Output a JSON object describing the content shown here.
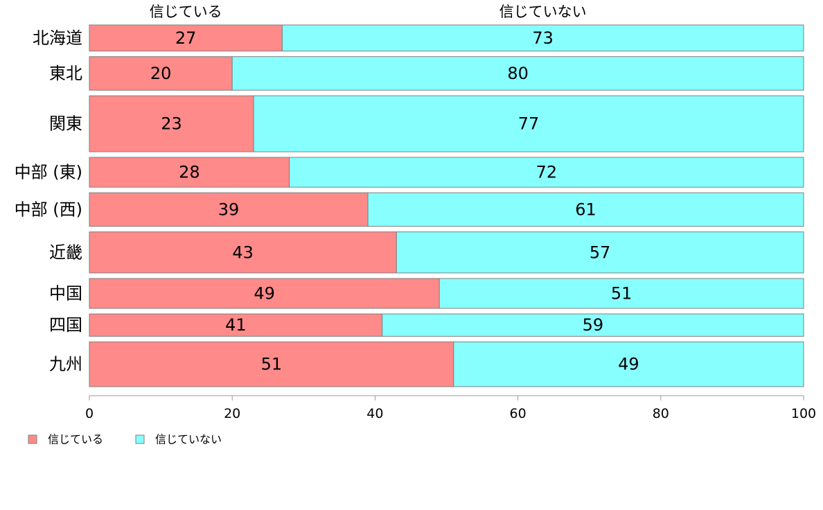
{
  "chart_data": {
    "type": "bar",
    "orientation": "horizontal",
    "stacked": true,
    "categories": [
      "北海道",
      "東北",
      "関東",
      "中部 (東)",
      "中部 (西)",
      "近畿",
      "中国",
      "四国",
      "九州"
    ],
    "series": [
      {
        "name": "信じている",
        "values": [
          27,
          20,
          23,
          28,
          39,
          43,
          49,
          41,
          51
        ],
        "color": "#ff8a8a"
      },
      {
        "name": "信じていない",
        "values": [
          73,
          80,
          77,
          72,
          61,
          57,
          51,
          59,
          49
        ],
        "color": "#88ffff"
      }
    ],
    "bar_weights": [
      7,
      9,
      15,
      8,
      9,
      11,
      8,
      6,
      12
    ],
    "xlim": [
      0,
      100
    ],
    "xticks": [
      "0",
      "20",
      "40",
      "60",
      "80",
      "100"
    ],
    "xlabel": "",
    "ylabel": "",
    "grid": false,
    "legend_position": "bottom-left",
    "top_labels": [
      "信じている",
      "信じていない"
    ]
  }
}
